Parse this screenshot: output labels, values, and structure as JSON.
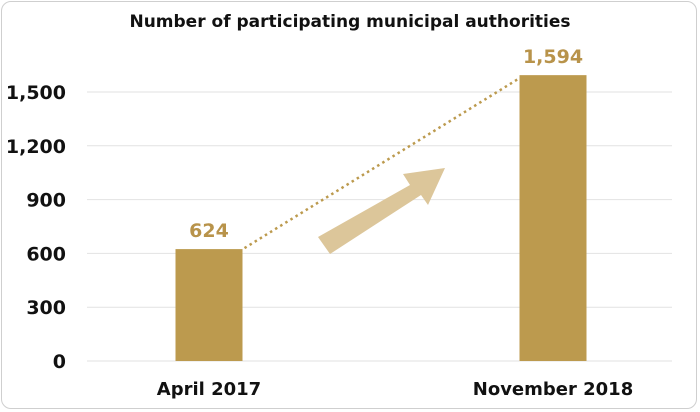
{
  "chart_data": {
    "type": "bar",
    "title": "Number of participating municipal authorities",
    "categories": [
      "April 2017",
      "November 2018"
    ],
    "values": [
      624,
      1594
    ],
    "value_labels": [
      "624",
      "1,594"
    ],
    "ylim": [
      0,
      1500
    ],
    "yticks": [
      0,
      300,
      600,
      900,
      1200,
      1500
    ],
    "ytick_labels": [
      "0",
      "300",
      "600",
      "900",
      "1,200",
      "1,500"
    ],
    "grid": true,
    "annotations": [
      "dotted trend line connecting bar tops",
      "upward arrow"
    ],
    "colors": {
      "bar": "#bc9a4e",
      "label": "#b8934a",
      "arrow": "#dcc69a",
      "grid": "#e2e2e2",
      "text": "#111111"
    }
  }
}
